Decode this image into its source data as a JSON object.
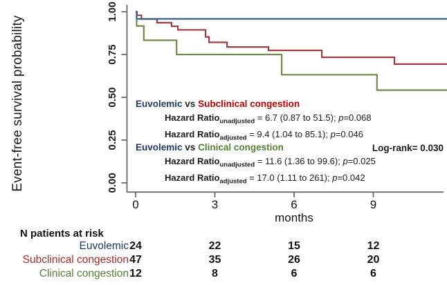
{
  "chart_data": {
    "type": "line",
    "subtype": "kaplan-meier-step",
    "title": "",
    "xlabel": "months",
    "ylabel": "Event-free survival probability",
    "xlim": [
      0,
      11.8
    ],
    "ylim": [
      0,
      1
    ],
    "x_tick_values": [
      0,
      3,
      6,
      9
    ],
    "y_tick_values": [
      1.0,
      0.75,
      0.5,
      0.25,
      0.0
    ],
    "grid": false,
    "legend_position": "none",
    "series": [
      {
        "name": "Euvolemic",
        "color": "#35618F",
        "steps": [
          [
            0,
            1.0
          ],
          [
            0.04,
            0.958
          ],
          [
            11.8,
            0.958
          ]
        ]
      },
      {
        "name": "Subclinical congestion",
        "color": "#9C3B40",
        "steps": [
          [
            0,
            1.0
          ],
          [
            0.05,
            0.979
          ],
          [
            0.22,
            0.957
          ],
          [
            0.81,
            0.936
          ],
          [
            1.36,
            0.915
          ],
          [
            1.6,
            0.894
          ],
          [
            2.65,
            0.853
          ],
          [
            2.78,
            0.821
          ],
          [
            3.46,
            0.794
          ],
          [
            5.03,
            0.774
          ],
          [
            7.05,
            0.734
          ],
          [
            9.8,
            0.694
          ],
          [
            11.8,
            0.694
          ]
        ]
      },
      {
        "name": "Clinical congestion",
        "color": "#6E8B4A",
        "steps": [
          [
            0,
            1.0
          ],
          [
            0.04,
            0.917
          ],
          [
            0.31,
            0.833
          ],
          [
            1.55,
            0.75
          ],
          [
            5.53,
            0.632
          ],
          [
            9.14,
            0.542
          ],
          [
            11.8,
            0.542
          ]
        ]
      }
    ]
  },
  "axes": {
    "ylabel": "Event-free survival probability",
    "xlabel": "months",
    "y_ticks": [
      "1.00",
      "0.75",
      "0.50",
      "0.25",
      "0.00"
    ],
    "x_ticks": [
      "0",
      "3",
      "6",
      "9"
    ]
  },
  "annotations": {
    "comparison_subclinical": {
      "group_a": "Euvolemic",
      "vs": "vs",
      "group_b": "Subclinical congestion",
      "lines": [
        {
          "label": "Hazard Ratio",
          "sub": "unadjusted",
          "value": " = 6.7 (0.87 to 51.5); ",
          "p": "p",
          "pval": "=0.068"
        },
        {
          "label": "Hazard Ratio",
          "sub": "adjusted",
          "value": " = 9.4 (1.04 to 85.1); ",
          "p": "p",
          "pval": "=0.046"
        }
      ]
    },
    "comparison_clinical": {
      "group_a": "Euvolemic",
      "vs": "vs",
      "group_b": "Clinical congestion",
      "lines": [
        {
          "label": "Hazard Ratio",
          "sub": "unadjusted",
          "value": " = 11.6 (1.36 to 99.6); ",
          "p": "p",
          "pval": "=0.025"
        },
        {
          "label": "Hazard Ratio",
          "sub": "adjusted",
          "value": " = 17.0 (1.11 to 261); ",
          "p": "p",
          "pval": "=0.042"
        }
      ]
    },
    "log_rank": "Log-rank= 0.030"
  },
  "risk_table": {
    "title": "N patients at risk",
    "time_points": [
      "0",
      "3",
      "6",
      "9"
    ],
    "rows": [
      {
        "label": "Euvolemic",
        "counts": [
          "24",
          "22",
          "15",
          "12"
        ]
      },
      {
        "label": "Subclinical congestion",
        "counts": [
          "47",
          "35",
          "26",
          "20"
        ]
      },
      {
        "label": "Clinical congestion",
        "counts": [
          "12",
          "8",
          "6",
          "6"
        ]
      }
    ]
  },
  "colors": {
    "navy": "#1F3864",
    "red": "#C00000",
    "green": "#538135",
    "table_red": "#B02A30",
    "vs_dark": "#222222",
    "axis": "#6A6A6A"
  }
}
